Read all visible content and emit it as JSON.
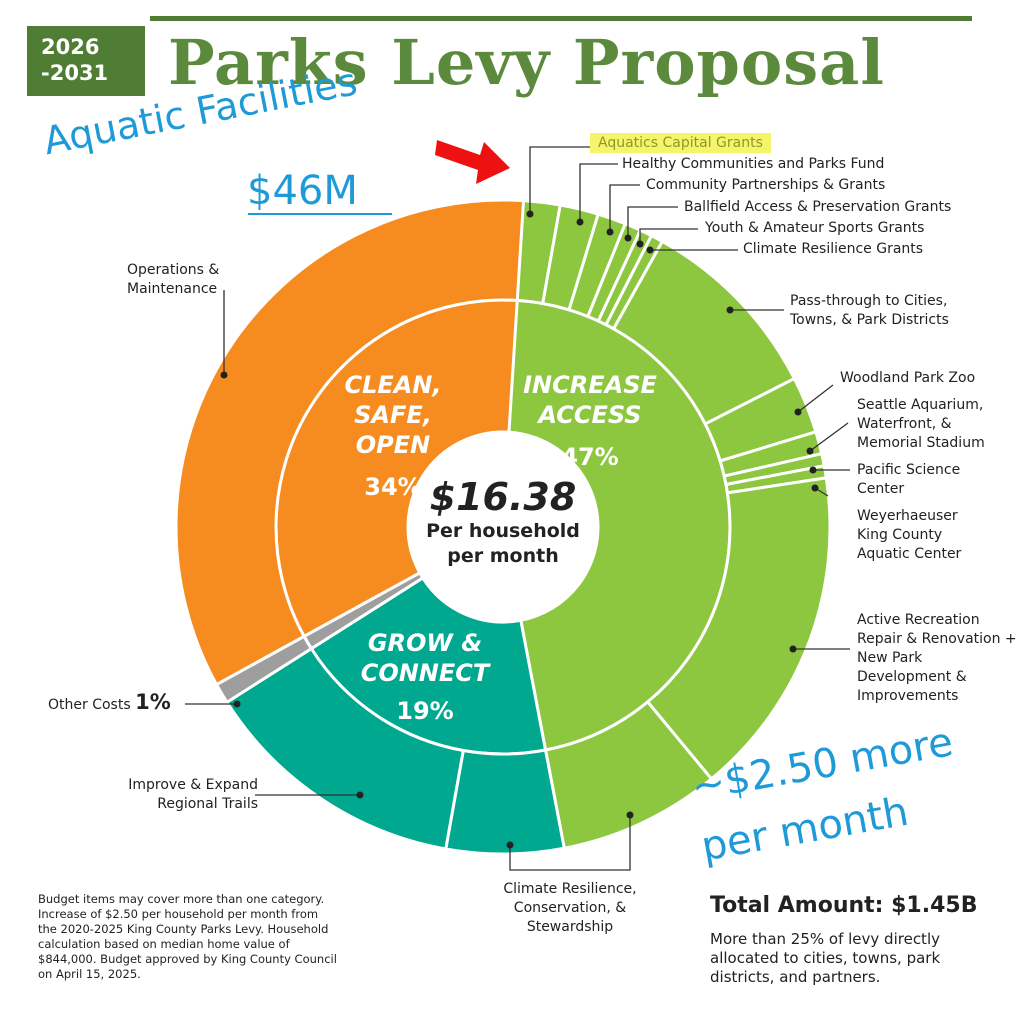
{
  "header": {
    "years": "2026\n-2031",
    "title": "Parks Levy Proposal"
  },
  "annotations": {
    "aquatic_facilities": "Aquatic Facilities",
    "aquatic_amount": "$46M",
    "more_line1": "~$2.50 more",
    "more_line2": "per month"
  },
  "center": {
    "amount": "$16.38",
    "line1": "Per household",
    "line2": "per month"
  },
  "footnote": "Budget items may cover more than one category. Increase of $2.50 per household per month from the 2020-2025 King County Parks Levy. Household calculation based on median home value of $844,000. Budget approved by King County Council on April 15, 2025.",
  "total": {
    "label": "Total Amount: $1.45B",
    "description": "More than 25% of levy directly allocated to cities, towns, park districts, and partners."
  },
  "colors": {
    "increase_access": "#8dc63f",
    "grow_connect": "#00a88f",
    "other": "#9e9e9e",
    "clean_safe_open": "#f68b1f",
    "title_green": "#5b8a3c",
    "annotation_blue": "#1f9ad8",
    "highlight": "#f6f46a"
  },
  "chart_data": {
    "type": "sunburst",
    "inner": [
      {
        "name": "Increase Access",
        "label1": "INCREASE",
        "label2": "ACCESS",
        "percent_label": "47%",
        "value": 47,
        "color": "#8dc63f"
      },
      {
        "name": "Grow & Connect",
        "label1": "GROW &",
        "label2": "CONNECT",
        "percent_label": "19%",
        "value": 19,
        "color": "#00a88f"
      },
      {
        "name": "Other Costs",
        "value": 1,
        "color": "#9e9e9e"
      },
      {
        "name": "Clean, Safe, Open",
        "label1": "CLEAN,",
        "label2": "SAFE, OPEN",
        "percent_label": "34%",
        "value": 34,
        "color": "#f68b1f"
      }
    ],
    "outer": [
      {
        "label": "Aquatics Capital Grants",
        "value": 2.8,
        "parent": "Increase Access"
      },
      {
        "label": "Healthy Communities and Parks Fund",
        "value": 1.9,
        "parent": "Increase Access"
      },
      {
        "label": "Community Partnerships & Grants",
        "value": 1.4,
        "parent": "Increase Access"
      },
      {
        "label": "Ballfield Access & Preservation Grants",
        "value": 0.8,
        "parent": "Increase Access"
      },
      {
        "label": "Youth & Amateur Sports Grants",
        "value": 0.6,
        "parent": "Increase Access"
      },
      {
        "label": "Climate Resilience Grants",
        "value": 0.6,
        "parent": "Increase Access"
      },
      {
        "label": "Pass-through to Cities, Towns, & Park Districts",
        "value": 9.4,
        "parent": "Increase Access"
      },
      {
        "label": "Woodland Park Zoo",
        "value": 2.8,
        "parent": "Increase Access"
      },
      {
        "label": "Seattle Aquarium, Waterfront, & Memorial Stadium",
        "value": 1.1,
        "parent": "Increase Access"
      },
      {
        "label": "Pacific Science Center",
        "value": 0.6,
        "parent": "Increase Access"
      },
      {
        "label": "Weyerhaeuser King County Aquatic Center",
        "value": 0.6,
        "parent": "Increase Access"
      },
      {
        "label": "Active Recreation Repair & Renovation + New Park Development & Improvements",
        "value": 16.4,
        "parent": "Increase Access"
      },
      {
        "label": "Climate Resilience, Conservation, & Stewardship",
        "value": 8.0,
        "parent": "Increase Access"
      },
      {
        "label": "Climate Resilience, Conservation, & Stewardship",
        "value": 5.8,
        "parent": "Grow & Connect"
      },
      {
        "label": "Improve & Expand Regional Trails",
        "value": 13.2,
        "parent": "Grow & Connect"
      },
      {
        "label": "Other Costs 1%",
        "value": 1,
        "parent": "Other Costs"
      },
      {
        "label": "Operations & Maintenance",
        "value": 34,
        "parent": "Clean, Safe, Open"
      }
    ],
    "other_costs_label": "Other Costs",
    "other_costs_percent": "1%"
  }
}
